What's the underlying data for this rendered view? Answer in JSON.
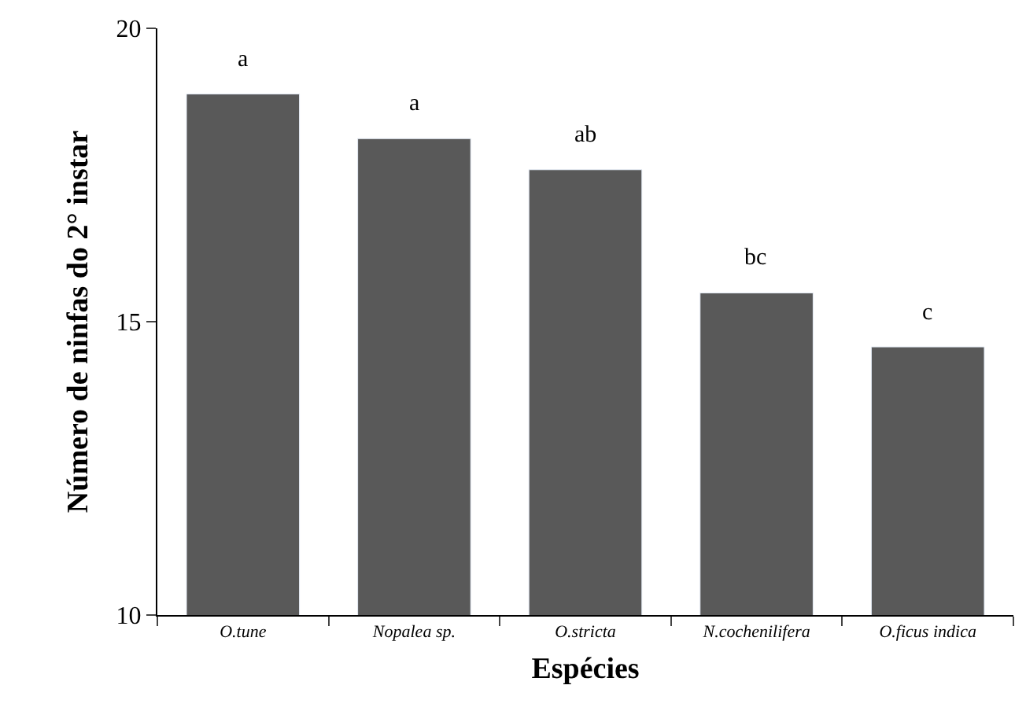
{
  "chart_data": {
    "type": "bar",
    "xlabel": "Espécies",
    "ylabel": "Número de ninfas do 2° instar",
    "categories": [
      "O.tune",
      "Nopalea sp.",
      "O.stricta",
      "N.cochenilifera",
      "O.ficus indica"
    ],
    "values": [
      18.88,
      18.12,
      17.59,
      15.49,
      14.57
    ],
    "color": "#595959",
    "ylim": [
      10,
      20
    ],
    "yticks": [
      10,
      15,
      20
    ],
    "annotations": [
      {
        "text": "a",
        "x": "O.tune",
        "y": 18.88
      },
      {
        "text": "a",
        "x": "Nopalea sp.",
        "y": 18.12
      },
      {
        "text": "ab",
        "x": "O.stricta",
        "y": 17.59
      },
      {
        "text": "bc",
        "x": "N.cochenilifera",
        "y": 15.49
      },
      {
        "text": "c",
        "x": "O.ficus indica",
        "y": 14.57
      }
    ]
  }
}
